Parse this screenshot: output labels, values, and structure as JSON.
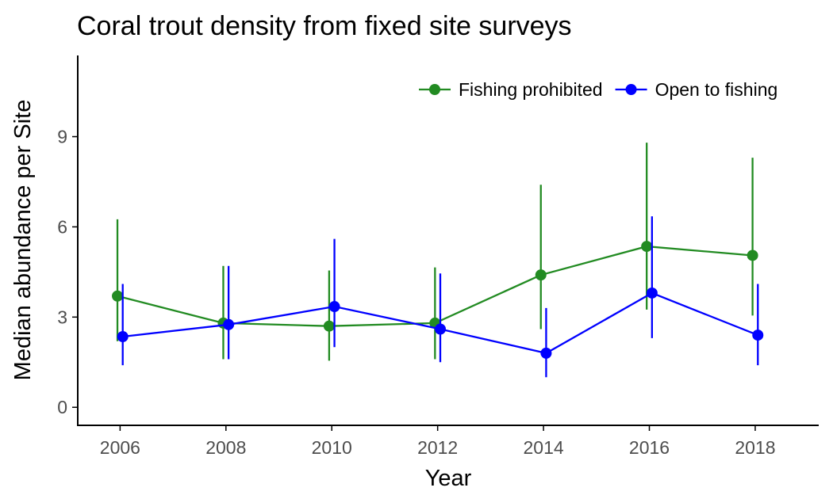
{
  "chart_data": {
    "type": "line",
    "title": "Coral trout density from fixed site surveys",
    "xlabel": "Year",
    "ylabel": "Median abundance per Site",
    "x": [
      2006,
      2008,
      2010,
      2012,
      2014,
      2016,
      2018
    ],
    "x_ticks": [
      2006,
      2008,
      2010,
      2012,
      2014,
      2016,
      2018
    ],
    "x_tick_labels": [
      "2006",
      "2008",
      "2010",
      "2012",
      "2014",
      "2016",
      "2018"
    ],
    "y_ticks": [
      0,
      3,
      6,
      9
    ],
    "y_tick_labels": [
      "0",
      "3",
      "6",
      "9"
    ],
    "xlim": [
      2005.2,
      2019.2
    ],
    "ylim": [
      -0.6,
      11.7
    ],
    "grid": false,
    "legend_position": "top-right",
    "series": [
      {
        "name": "Fishing prohibited",
        "color": "#228B22",
        "values": [
          3.7,
          2.8,
          2.7,
          2.8,
          4.4,
          5.35,
          5.05
        ],
        "lower": [
          2.2,
          1.6,
          1.55,
          1.6,
          2.6,
          3.25,
          3.05
        ],
        "upper": [
          6.25,
          4.7,
          4.55,
          4.65,
          7.4,
          8.8,
          8.3
        ]
      },
      {
        "name": "Open to fishing",
        "color": "#0000FF",
        "values": [
          2.35,
          2.75,
          3.35,
          2.6,
          1.8,
          3.8,
          2.4
        ],
        "lower": [
          1.4,
          1.6,
          2.0,
          1.5,
          1.0,
          2.3,
          1.4
        ],
        "upper": [
          4.1,
          4.7,
          5.6,
          4.45,
          3.3,
          6.35,
          4.1
        ]
      }
    ]
  }
}
